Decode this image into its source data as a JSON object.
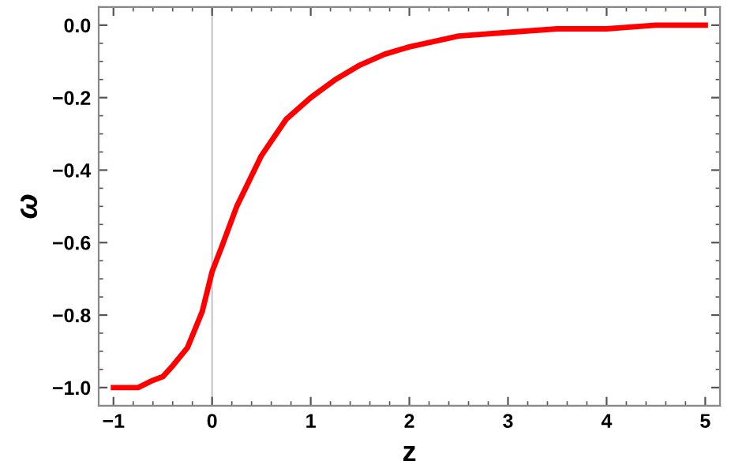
{
  "chart_data": {
    "type": "line",
    "xlabel": "z",
    "ylabel": "ω",
    "x": [
      -1,
      -0.75,
      -0.6,
      -0.5,
      -0.4,
      -0.25,
      -0.1,
      0,
      0.1,
      0.25,
      0.5,
      0.75,
      1,
      1.25,
      1.5,
      1.75,
      2,
      2.5,
      3,
      3.5,
      4,
      4.5,
      5
    ],
    "series": [
      {
        "color": "#ff0000",
        "values": [
          -1.0,
          -1.0,
          -0.98,
          -0.97,
          -0.94,
          -0.89,
          -0.79,
          -0.68,
          -0.61,
          -0.5,
          -0.36,
          -0.26,
          -0.2,
          -0.15,
          -0.11,
          -0.08,
          -0.06,
          -0.03,
          -0.02,
          -0.01,
          -0.01,
          0.0,
          0.0
        ]
      }
    ],
    "xlim": [
      -1.15,
      5.15
    ],
    "ylim": [
      -1.05,
      0.05
    ],
    "xticks": [
      {
        "value": -1,
        "label": "−1"
      },
      0,
      1,
      2,
      3,
      4,
      5
    ],
    "yticks": [
      {
        "value": -1,
        "label": "−1.0"
      },
      {
        "value": -0.8,
        "label": "−0.8"
      },
      {
        "value": -0.6,
        "label": "−0.6"
      },
      {
        "value": -0.4,
        "label": "−0.4"
      },
      {
        "value": -0.2,
        "label": "−0.2"
      },
      {
        "value": 0,
        "label": "0.0"
      }
    ],
    "ref_lines": [
      {
        "axis": "x",
        "value": 0,
        "color": "#c8c8c8"
      }
    ],
    "grid": false,
    "legend": false,
    "marker": "none",
    "line_style": "solid"
  }
}
